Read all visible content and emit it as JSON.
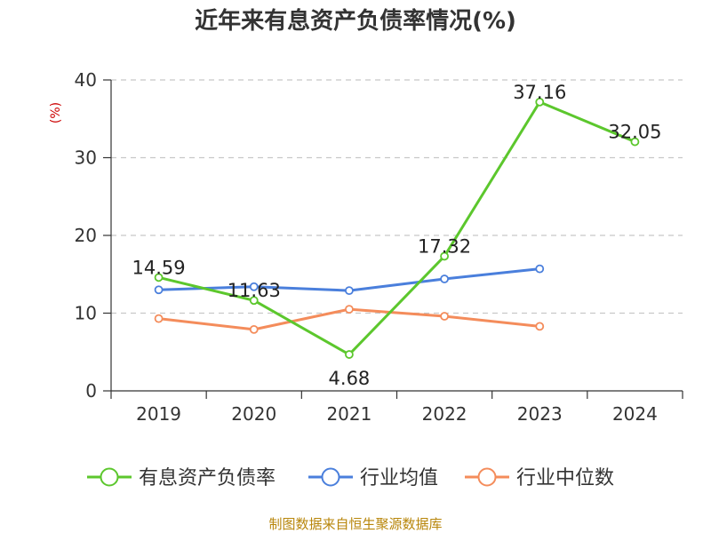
{
  "chart_data": {
    "type": "line",
    "title": "近年来有息资产负债率情况(%)",
    "ylabel": "(%)",
    "xlabel": "",
    "categories": [
      "2019",
      "2020",
      "2021",
      "2022",
      "2023",
      "2024"
    ],
    "ylim": [
      0,
      40
    ],
    "yticks": [
      0,
      10,
      20,
      30,
      40
    ],
    "grid": true,
    "legend_position": "bottom",
    "series": [
      {
        "name": "有息资产负债率",
        "color": "#5cc72d",
        "values": [
          14.59,
          11.63,
          4.68,
          17.32,
          37.16,
          32.05
        ],
        "labels": [
          "14.59",
          "11.63",
          "4.68",
          "17.32",
          "37.16",
          "32.05"
        ]
      },
      {
        "name": "行业均值",
        "color": "#4a7fdc",
        "values": [
          13.0,
          13.4,
          12.9,
          14.4,
          15.7,
          null
        ]
      },
      {
        "name": "行业中位数",
        "color": "#f48c5b",
        "values": [
          9.3,
          7.9,
          10.5,
          9.6,
          8.3,
          null
        ]
      }
    ]
  },
  "source": "制图数据来自恒生聚源数据库"
}
